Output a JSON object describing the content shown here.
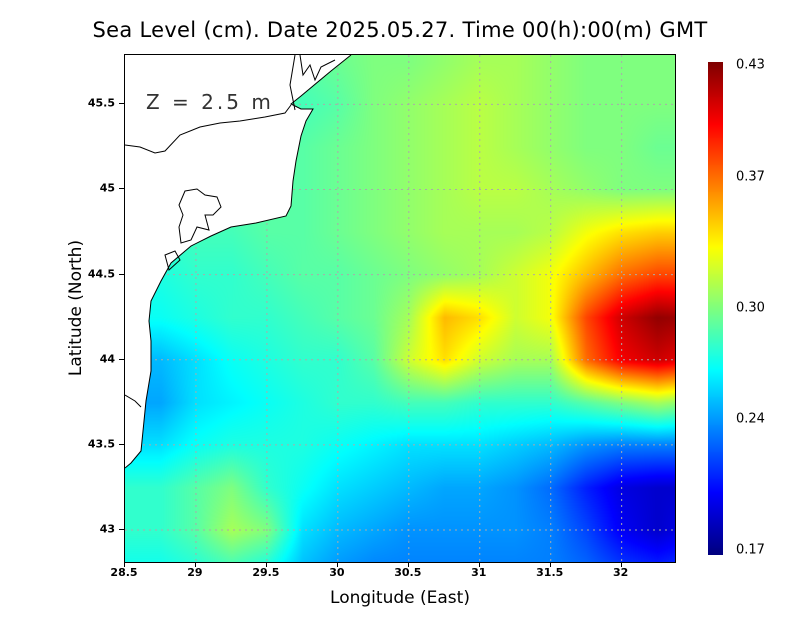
{
  "chart_data": {
    "type": "heatmap",
    "title": "Sea Level (cm). Date 2025.05.27. Time 00(h):00(m) GMT",
    "annotation": "Z = 2.5 m",
    "xlabel": "Longitude (East)",
    "ylabel": "Latitude (North)",
    "xlim": [
      28.5,
      32.39
    ],
    "ylim": [
      42.8,
      45.79
    ],
    "xticks": [
      "28.5",
      "29",
      "29.5",
      "30",
      "30.5",
      "31",
      "31.5",
      "32"
    ],
    "yticks": [
      "45.5",
      "45",
      "44.5",
      "44",
      "43.5",
      "43"
    ],
    "grid": true,
    "colorbar": {
      "min": 0.17,
      "max": 0.43,
      "labels": [
        "0.43",
        "0.37",
        "0.30",
        "0.24",
        "0.17"
      ],
      "colormap": "jet"
    },
    "grid_lon": [
      28.5,
      28.75,
      29,
      29.25,
      29.5,
      29.75,
      30,
      30.25,
      30.5,
      30.75,
      31,
      31.25,
      31.5,
      31.75,
      32,
      32.25,
      32.5
    ],
    "grid_lat": [
      45.75,
      45.5,
      45.25,
      45.0,
      44.75,
      44.5,
      44.25,
      44.0,
      43.75,
      43.5,
      43.25,
      43.0,
      42.75
    ],
    "values": [
      [
        0.29,
        0.29,
        0.29,
        0.29,
        0.29,
        0.29,
        0.295,
        0.3,
        0.3,
        0.305,
        0.31,
        0.31,
        0.305,
        0.3,
        0.3,
        0.3,
        0.3
      ],
      [
        0.29,
        0.29,
        0.29,
        0.29,
        0.29,
        0.285,
        0.29,
        0.3,
        0.305,
        0.31,
        0.315,
        0.31,
        0.305,
        0.3,
        0.3,
        0.3,
        0.3
      ],
      [
        0.29,
        0.29,
        0.29,
        0.29,
        0.29,
        0.29,
        0.295,
        0.3,
        0.305,
        0.31,
        0.315,
        0.31,
        0.305,
        0.3,
        0.3,
        0.295,
        0.295
      ],
      [
        0.29,
        0.29,
        0.29,
        0.29,
        0.29,
        0.29,
        0.295,
        0.3,
        0.305,
        0.31,
        0.315,
        0.315,
        0.31,
        0.305,
        0.3,
        0.3,
        0.3
      ],
      [
        0.28,
        0.28,
        0.285,
        0.285,
        0.29,
        0.29,
        0.295,
        0.3,
        0.305,
        0.31,
        0.31,
        0.31,
        0.315,
        0.33,
        0.34,
        0.345,
        0.345
      ],
      [
        0.275,
        0.275,
        0.28,
        0.28,
        0.285,
        0.29,
        0.29,
        0.295,
        0.3,
        0.305,
        0.31,
        0.32,
        0.33,
        0.35,
        0.37,
        0.38,
        0.38
      ],
      [
        0.27,
        0.27,
        0.275,
        0.28,
        0.28,
        0.285,
        0.29,
        0.295,
        0.31,
        0.35,
        0.34,
        0.32,
        0.33,
        0.38,
        0.41,
        0.425,
        0.42
      ],
      [
        0.25,
        0.25,
        0.26,
        0.27,
        0.275,
        0.28,
        0.28,
        0.29,
        0.32,
        0.34,
        0.32,
        0.31,
        0.31,
        0.37,
        0.4,
        0.41,
        0.4
      ],
      [
        0.245,
        0.245,
        0.26,
        0.265,
        0.27,
        0.275,
        0.28,
        0.28,
        0.285,
        0.285,
        0.28,
        0.28,
        0.28,
        0.29,
        0.3,
        0.31,
        0.3
      ],
      [
        0.26,
        0.26,
        0.27,
        0.275,
        0.275,
        0.275,
        0.27,
        0.265,
        0.26,
        0.26,
        0.26,
        0.255,
        0.25,
        0.24,
        0.235,
        0.235,
        0.235
      ],
      [
        0.28,
        0.28,
        0.29,
        0.3,
        0.28,
        0.27,
        0.26,
        0.255,
        0.25,
        0.245,
        0.245,
        0.24,
        0.23,
        0.21,
        0.195,
        0.19,
        0.19
      ],
      [
        0.28,
        0.28,
        0.29,
        0.31,
        0.3,
        0.26,
        0.25,
        0.245,
        0.24,
        0.24,
        0.24,
        0.24,
        0.235,
        0.22,
        0.2,
        0.19,
        0.2
      ],
      [
        0.27,
        0.27,
        0.275,
        0.28,
        0.27,
        0.25,
        0.24,
        0.235,
        0.235,
        0.235,
        0.235,
        0.235,
        0.235,
        0.23,
        0.22,
        0.215,
        0.22
      ]
    ]
  }
}
